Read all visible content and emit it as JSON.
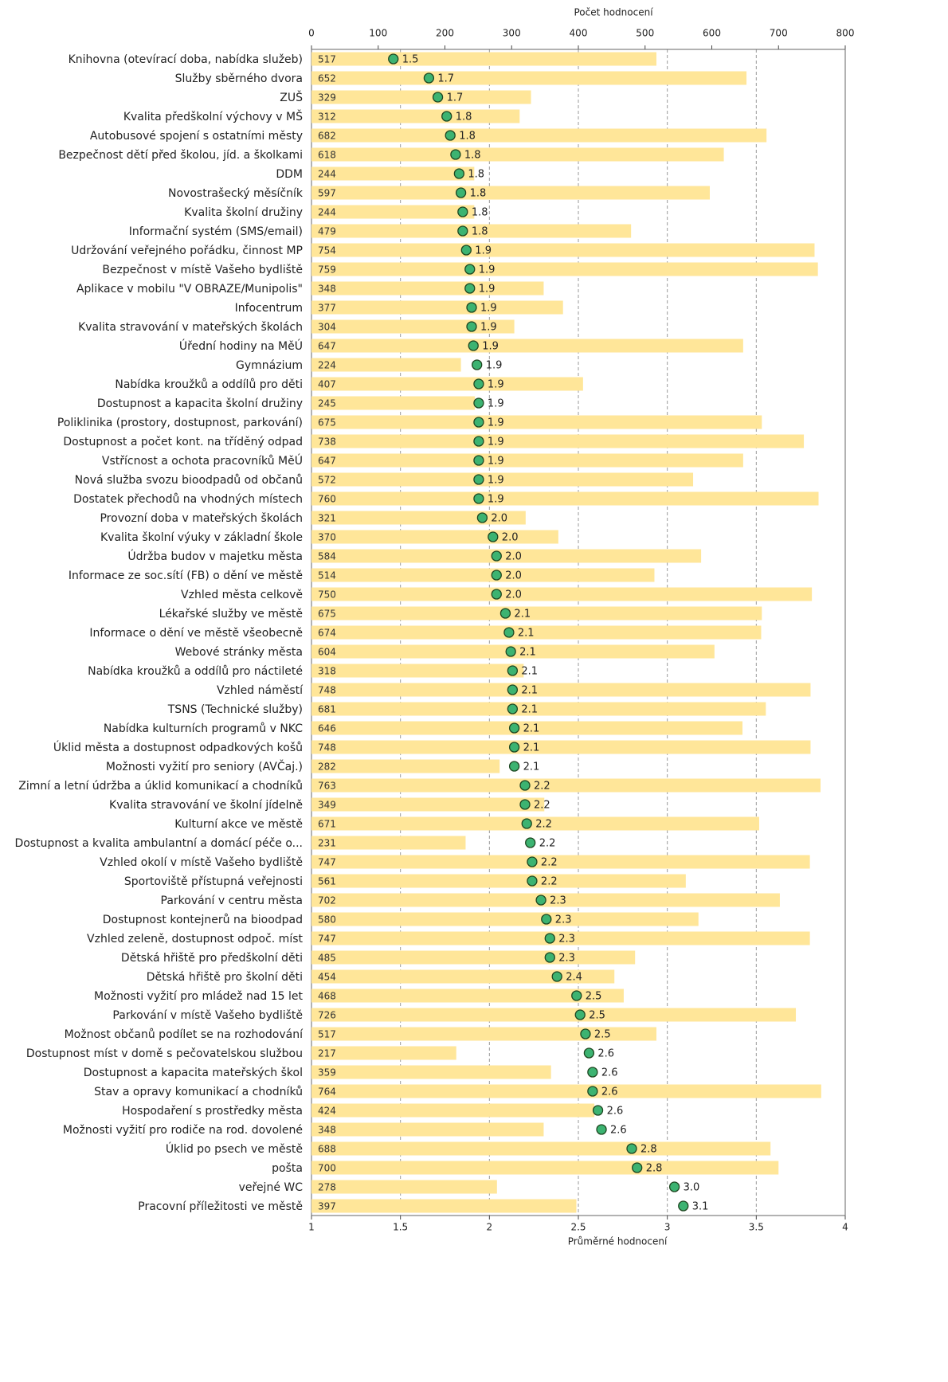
{
  "chart_data": {
    "type": "bar",
    "x2_label": "Počet hodnocení",
    "x_label": "Průměrné hodnocení",
    "categories": [
      "Knihovna (otevírací doba, nabídka služeb)",
      "Služby sběrného dvora",
      "ZUŠ",
      "Kvalita předškolní výchovy v MŠ",
      "Autobusové spojení s ostatními městy",
      "Bezpečnost dětí před školou, jíd. a školkami",
      "DDM",
      "Novostrašecký měsíčník",
      "Kvalita školní družiny",
      "Informační systém (SMS/email)",
      "Udržování veřejného pořádku, činnost MP",
      "Bezpečnost v místě Vašeho bydliště",
      "Aplikace v mobilu \"V OBRAZE/Munipolis\"",
      "Infocentrum",
      "Kvalita stravování v mateřských školách",
      "Úřední hodiny na MěÚ",
      "Gymnázium",
      "Nabídka kroužků a oddílů pro děti",
      "Dostupnost a kapacita školní družiny",
      "Poliklinika (prostory, dostupnost, parkování)",
      "Dostupnost a počet kont. na tříděný odpad",
      "Vstřícnost a ochota pracovníků MěÚ",
      "Nová služba svozu bioodpadů od občanů",
      "Dostatek přechodů na vhodných místech",
      "Provozní doba v mateřských školách",
      "Kvalita školní výuky v základní škole",
      "Údržba budov v majetku města",
      "Informace ze soc.sítí (FB) o dění ve městě",
      "Vzhled města celkově",
      "Lékařské služby ve městě",
      "Informace o dění ve městě všeobecně",
      "Webové stránky města",
      "Nabídka kroužků a oddílů pro náctileté",
      "Vzhled náměstí",
      "TSNS (Technické služby)",
      "Nabídka kulturních programů v NKC",
      "Úklid města a dostupnost odpadkových košů",
      "Možnosti vyžití pro seniory (AVČaj.)",
      "Zimní a letní údržba a úklid komunikací a chodníků",
      "Kvalita stravování ve školní jídelně",
      "Kulturní akce ve městě",
      "Dostupnost a kvalita ambulantní a domácí péče o...",
      "Vzhled okolí v místě Vašeho bydliště",
      "Sportoviště přístupná veřejnosti",
      "Parkování v centru města",
      "Dostupnost kontejnerů na bioodpad",
      "Vzhled zeleně, dostupnost odpoč. míst",
      "Dětská hřiště pro předškolní děti",
      "Dětská hřiště pro školní děti",
      "Možnosti vyžití pro mládež nad 15 let",
      "Parkování v místě Vašeho bydliště",
      "Možnost občanů podílet se na rozhodování",
      "Dostupnost míst v domě s pečovatelskou službou",
      "Dostupnost a kapacita mateřských škol",
      "Stav a opravy komunikací a chodníků",
      "Hospodaření s prostředky města",
      "Možnosti vyžití pro rodiče na rod. dovolené",
      "Úklid po psech ve městě",
      "pošta",
      "veřejné WC",
      "Pracovní příležitosti ve městě"
    ],
    "series": [
      {
        "color": "#ffe699",
        "axis": "x2",
        "values": [
          517,
          652,
          329,
          312,
          682,
          618,
          244,
          597,
          244,
          479,
          754,
          759,
          348,
          377,
          304,
          647,
          224,
          407,
          245,
          675,
          738,
          647,
          572,
          760,
          321,
          370,
          584,
          514,
          750,
          675,
          674,
          604,
          318,
          748,
          681,
          646,
          748,
          282,
          763,
          349,
          671,
          231,
          747,
          561,
          702,
          580,
          747,
          485,
          454,
          468,
          726,
          517,
          217,
          359,
          764,
          424,
          348,
          688,
          700,
          278,
          397
        ]
      },
      {
        "color": "#3cb371",
        "marker": "dot",
        "values": [
          1.46,
          1.66,
          1.71,
          1.76,
          1.78,
          1.81,
          1.83,
          1.84,
          1.85,
          1.85,
          1.87,
          1.89,
          1.89,
          1.9,
          1.9,
          1.91,
          1.93,
          1.94,
          1.94,
          1.94,
          1.94,
          1.94,
          1.94,
          1.94,
          1.96,
          2.02,
          2.04,
          2.04,
          2.04,
          2.09,
          2.11,
          2.12,
          2.13,
          2.13,
          2.13,
          2.14,
          2.14,
          2.14,
          2.2,
          2.2,
          2.21,
          2.23,
          2.24,
          2.24,
          2.29,
          2.32,
          2.34,
          2.34,
          2.38,
          2.49,
          2.51,
          2.54,
          2.56,
          2.58,
          2.58,
          2.61,
          2.63,
          2.8,
          2.83,
          3.04,
          3.09
        ],
        "value_labels": [
          "1.5",
          "1.7",
          "1.7",
          "1.8",
          "1.8",
          "1.8",
          "1.8",
          "1.8",
          "1.8",
          "1.8",
          "1.9",
          "1.9",
          "1.9",
          "1.9",
          "1.9",
          "1.9",
          "1.9",
          "1.9",
          "1.9",
          "1.9",
          "1.9",
          "1.9",
          "1.9",
          "1.9",
          "2.0",
          "2.0",
          "2.0",
          "2.0",
          "2.0",
          "2.1",
          "2.1",
          "2.1",
          "2.1",
          "2.1",
          "2.1",
          "2.1",
          "2.1",
          "2.1",
          "2.2",
          "2.2",
          "2.2",
          "2.2",
          "2.2",
          "2.2",
          "2.3",
          "2.3",
          "2.3",
          "2.3",
          "2.4",
          "2.5",
          "2.5",
          "2.5",
          "2.6",
          "2.6",
          "2.6",
          "2.6",
          "2.6",
          "2.8",
          "2.8",
          "3.0",
          "3.1"
        ]
      }
    ],
    "xlim": [
      1,
      4
    ],
    "xticks": [
      1,
      1.5,
      2,
      2.5,
      3,
      3.5,
      4
    ],
    "x2lim": [
      0,
      800
    ],
    "x2ticks": [
      0,
      100,
      200,
      300,
      400,
      500,
      600,
      700,
      800
    ],
    "grid": true
  }
}
